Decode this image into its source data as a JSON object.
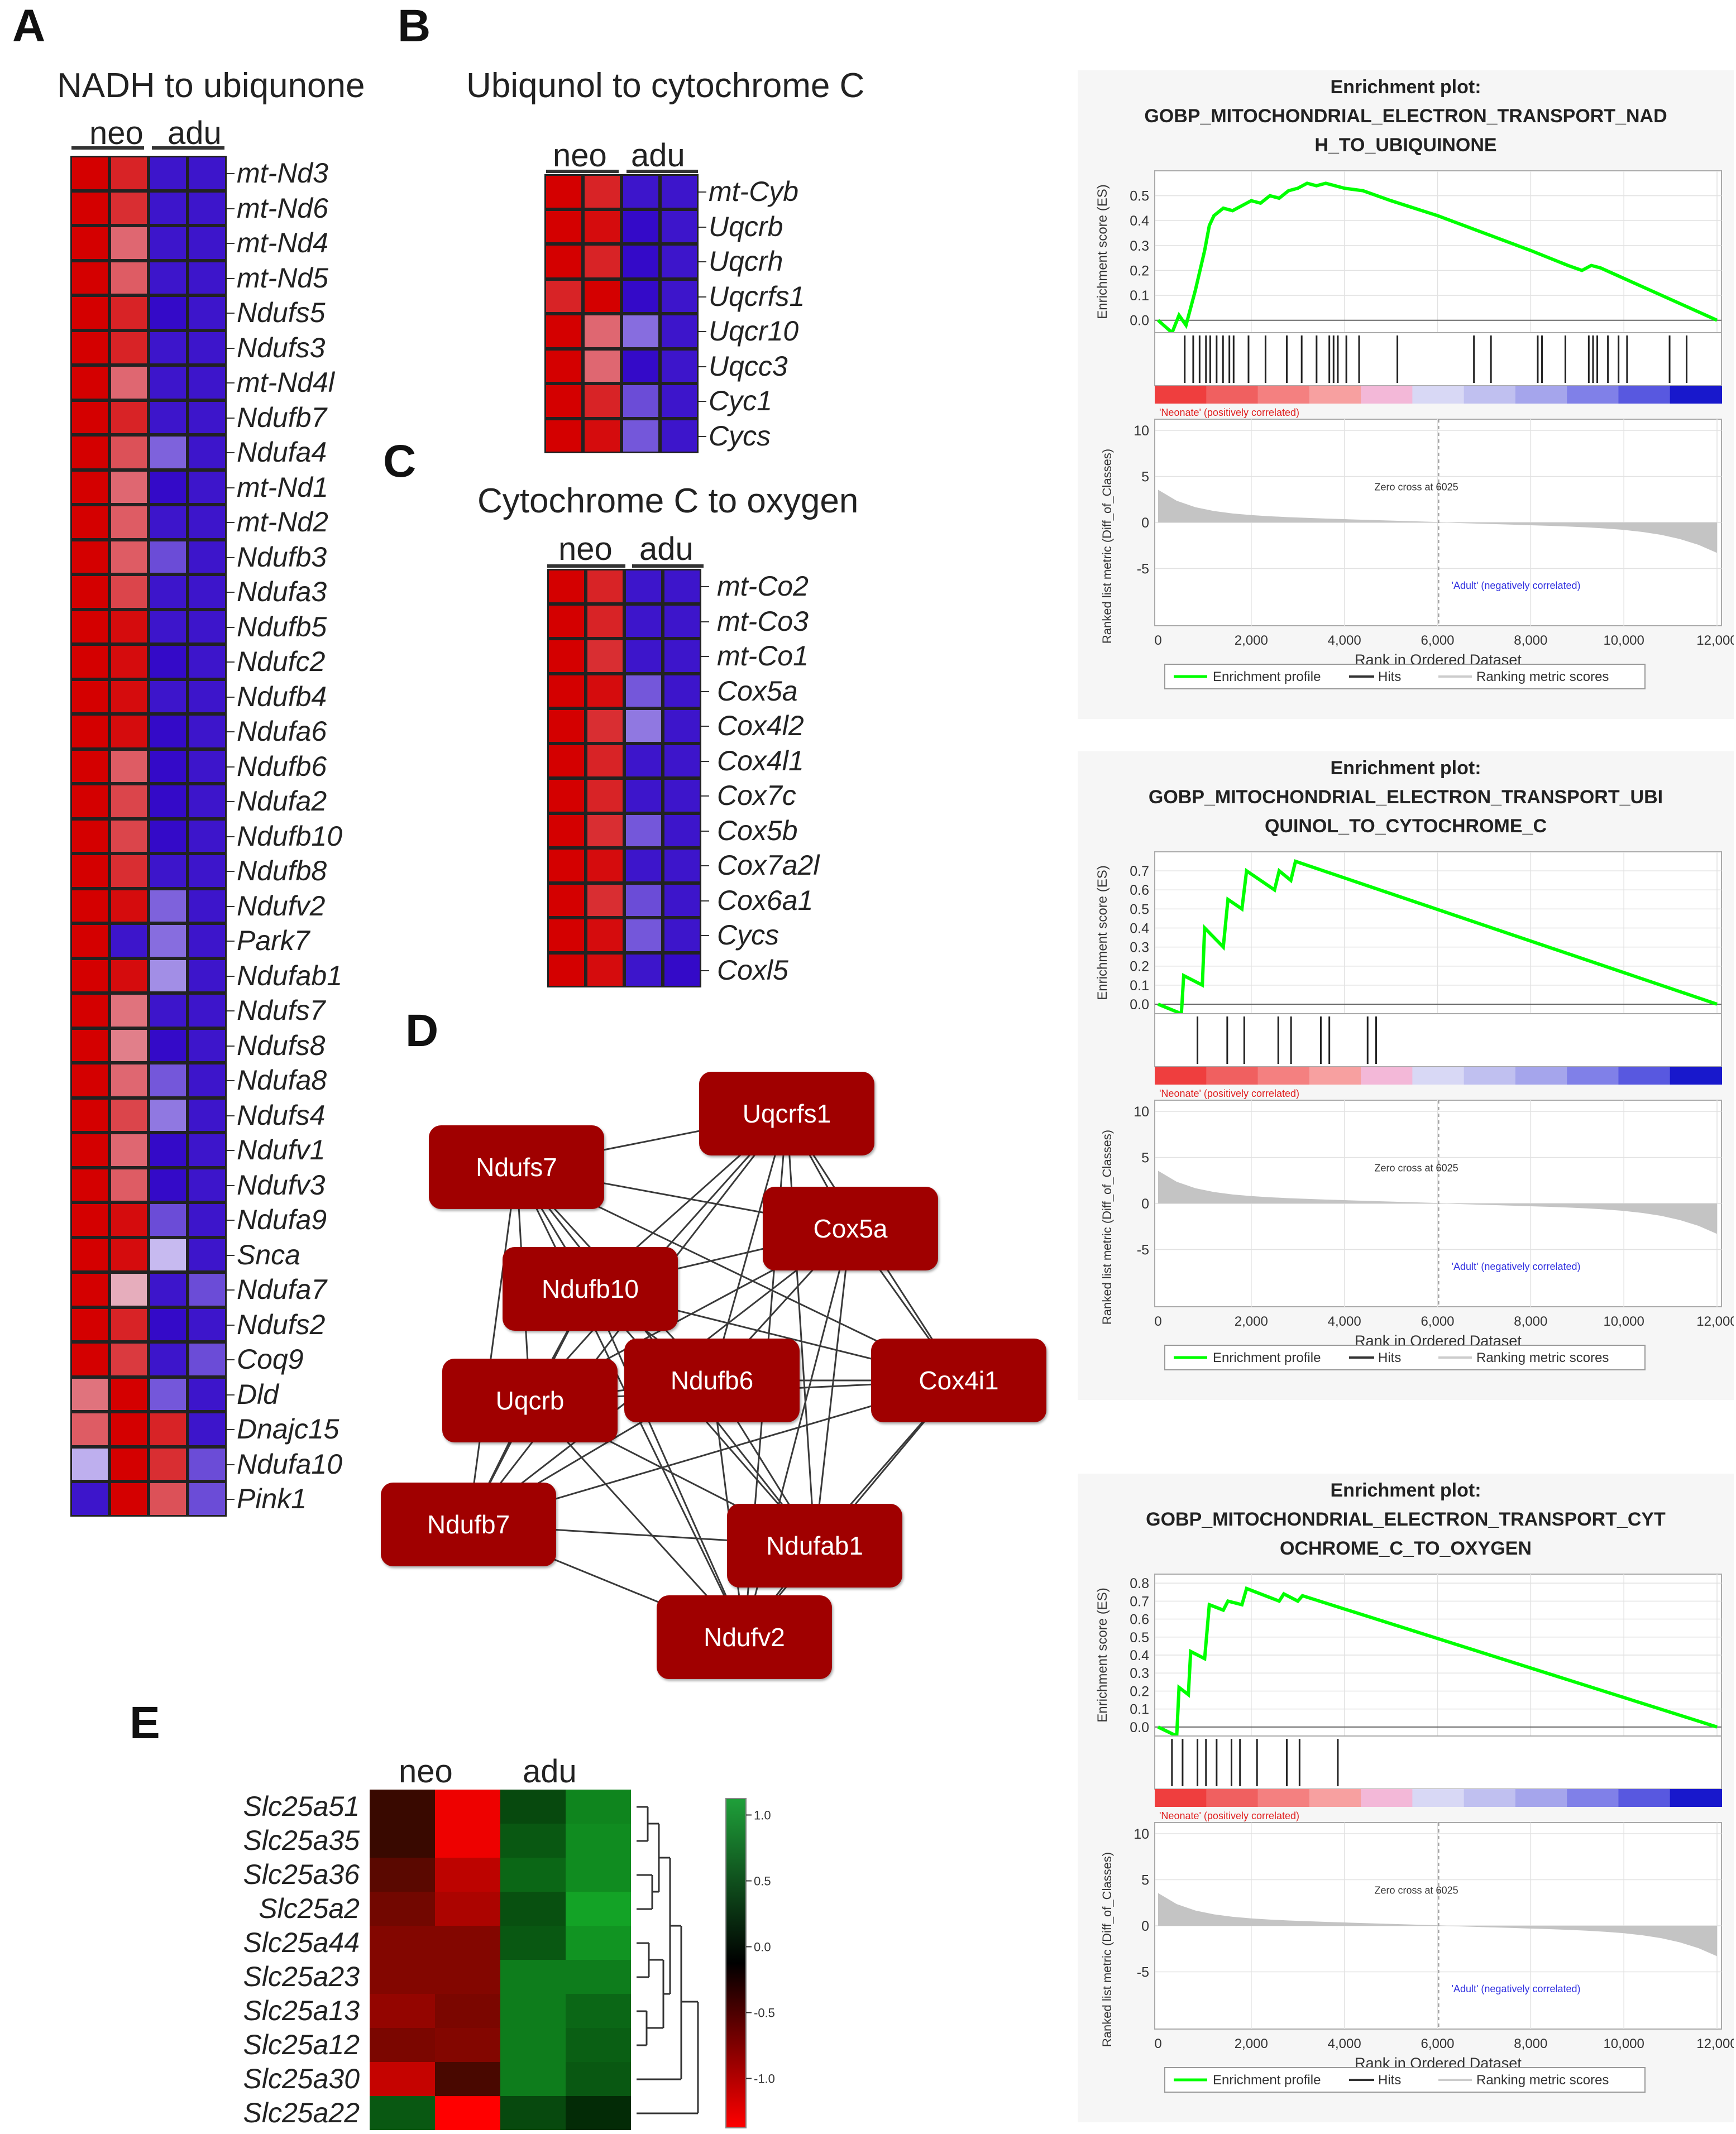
{
  "panels": {
    "A": "A",
    "B": "B",
    "C": "C",
    "D": "D",
    "E": "E"
  },
  "panel_a": {
    "title": "NADH to ubiqunone",
    "group_neo": "neo",
    "group_adu": "adu",
    "genes": [
      "mt-Nd3",
      "mt-Nd6",
      "mt-Nd4",
      "mt-Nd5",
      "Ndufs5",
      "Ndufs3",
      "mt-Nd4l",
      "Ndufb7",
      "Ndufa4",
      "mt-Nd1",
      "mt-Nd2",
      "Ndufb3",
      "Ndufa3",
      "Ndufb5",
      "Ndufc2",
      "Ndufb4",
      "Ndufa6",
      "Ndufb6",
      "Ndufa2",
      "Ndufb10",
      "Ndufb8",
      "Ndufv2",
      "Park7",
      "Ndufab1",
      "Ndufs7",
      "Ndufs8",
      "Ndufa8",
      "Ndufs4",
      "Ndufv1",
      "Ndufv3",
      "Ndufa9",
      "Snca",
      "Ndufa7",
      "Ndufs2",
      "Coq9",
      "Dld",
      "Dnajc15",
      "Ndufa10",
      "Pink1"
    ],
    "values": [
      [
        1,
        0.85,
        -0.95,
        -0.95
      ],
      [
        1,
        0.8,
        -0.95,
        -0.95
      ],
      [
        1,
        0.55,
        -0.95,
        -0.95
      ],
      [
        1,
        0.6,
        -0.95,
        -0.95
      ],
      [
        1,
        0.85,
        -1,
        -0.95
      ],
      [
        1,
        0.85,
        -0.95,
        -0.95
      ],
      [
        1,
        0.55,
        -0.95,
        -0.95
      ],
      [
        1,
        0.85,
        -0.95,
        -0.95
      ],
      [
        1,
        0.65,
        -0.6,
        -0.95
      ],
      [
        1,
        0.55,
        -1,
        -0.95
      ],
      [
        1,
        0.6,
        -0.95,
        -0.95
      ],
      [
        1,
        0.6,
        -0.7,
        -0.95
      ],
      [
        1,
        0.7,
        -0.95,
        -0.95
      ],
      [
        1,
        0.95,
        -0.95,
        -0.95
      ],
      [
        1,
        0.95,
        -1,
        -0.95
      ],
      [
        1,
        0.95,
        -0.95,
        -0.95
      ],
      [
        1,
        0.95,
        -1,
        -0.95
      ],
      [
        1,
        0.6,
        -1,
        -0.95
      ],
      [
        1,
        0.7,
        -1,
        -0.95
      ],
      [
        1,
        0.7,
        -1,
        -0.95
      ],
      [
        1,
        0.8,
        -0.95,
        -0.95
      ],
      [
        1,
        0.95,
        -0.6,
        -0.95
      ],
      [
        1,
        -0.95,
        -0.55,
        -0.95
      ],
      [
        1,
        0.95,
        -0.4,
        -0.95
      ],
      [
        1,
        0.5,
        -0.95,
        -0.95
      ],
      [
        1,
        0.45,
        -1,
        -0.95
      ],
      [
        1,
        0.55,
        -0.65,
        -0.95
      ],
      [
        1,
        0.7,
        -0.5,
        -0.95
      ],
      [
        1,
        0.55,
        -1,
        -0.95
      ],
      [
        1,
        0.6,
        -1,
        -0.95
      ],
      [
        1,
        0.95,
        -0.7,
        -0.95
      ],
      [
        1,
        0.95,
        -0.2,
        -0.95
      ],
      [
        1,
        0.25,
        -0.95,
        -0.7
      ],
      [
        1,
        0.85,
        -1,
        -0.95
      ],
      [
        1,
        0.75,
        -0.95,
        -0.7
      ],
      [
        0.5,
        1,
        -0.65,
        -0.95
      ],
      [
        0.6,
        1,
        0.85,
        -0.95
      ],
      [
        -0.25,
        1,
        0.8,
        -0.7
      ],
      [
        -0.95,
        1,
        0.65,
        -0.7
      ]
    ]
  },
  "panel_b": {
    "title": "Ubiqunol to cytochrome C",
    "group_neo": "neo",
    "group_adu": "adu",
    "genes": [
      "mt-Cyb",
      "Uqcrb",
      "Uqcrh",
      "Uqcrfs1",
      "Uqcr10",
      "Uqcc3",
      "Cyc1",
      "Cycs"
    ],
    "values": [
      [
        1,
        0.85,
        -0.95,
        -0.95
      ],
      [
        1,
        0.95,
        -1,
        -0.95
      ],
      [
        1,
        0.85,
        -1,
        -0.95
      ],
      [
        0.85,
        1,
        -1,
        -0.95
      ],
      [
        1,
        0.55,
        -0.55,
        -0.95
      ],
      [
        1,
        0.55,
        -1,
        -0.95
      ],
      [
        1,
        0.85,
        -0.7,
        -0.95
      ],
      [
        1,
        0.95,
        -0.65,
        -0.95
      ]
    ]
  },
  "panel_c": {
    "title": "Cytochrome C to oxygen",
    "group_neo": "neo",
    "group_adu": "adu",
    "genes": [
      "mt-Co2",
      "mt-Co3",
      "mt-Co1",
      "Cox5a",
      "Cox4l2",
      "Cox4l1",
      "Cox7c",
      "Cox5b",
      "Cox7a2l",
      "Cox6a1",
      "Cycs",
      "Coxl5"
    ],
    "values": [
      [
        1,
        0.85,
        -0.95,
        -0.95
      ],
      [
        1,
        0.85,
        -0.95,
        -0.95
      ],
      [
        1,
        0.8,
        -0.95,
        -0.95
      ],
      [
        1,
        0.95,
        -0.65,
        -0.95
      ],
      [
        1,
        0.8,
        -0.5,
        -0.95
      ],
      [
        1,
        0.85,
        -0.95,
        -0.95
      ],
      [
        1,
        0.85,
        -0.95,
        -0.95
      ],
      [
        1,
        0.8,
        -0.65,
        -0.95
      ],
      [
        1,
        0.95,
        -0.95,
        -0.95
      ],
      [
        1,
        0.8,
        -0.7,
        -0.95
      ],
      [
        1,
        0.95,
        -0.65,
        -0.95
      ],
      [
        1,
        0.95,
        -0.95,
        -1
      ]
    ]
  },
  "panel_d": {
    "nodes": [
      "Ndufs7",
      "Uqcrfs1",
      "Cox5a",
      "Ndufb10",
      "Uqcrb",
      "Ndufb6",
      "Cox4i1",
      "Ndufb7",
      "Ndufab1",
      "Ndufv2"
    ]
  },
  "panel_e": {
    "group_neo": "neo",
    "group_adu": "adu",
    "genes": [
      "Slc25a51",
      "Slc25a35",
      "Slc25a36",
      "Slc25a2",
      "Slc25a44",
      "Slc25a23",
      "Slc25a13",
      "Slc25a12",
      "Slc25a30",
      "Slc25a22"
    ],
    "values": [
      [
        -0.1,
        -1.2,
        0.35,
        0.75
      ],
      [
        -0.1,
        -1.2,
        0.45,
        0.8
      ],
      [
        -0.3,
        -0.9,
        0.55,
        0.8
      ],
      [
        -0.45,
        -0.8,
        0.4,
        0.95
      ],
      [
        -0.55,
        -0.55,
        0.45,
        0.85
      ],
      [
        -0.55,
        -0.55,
        0.7,
        0.7
      ],
      [
        -0.65,
        -0.5,
        0.7,
        0.55
      ],
      [
        -0.5,
        -0.55,
        0.7,
        0.5
      ],
      [
        -0.95,
        -0.2,
        0.7,
        0.45
      ],
      [
        0.45,
        -1.4,
        0.35,
        0.15
      ]
    ],
    "colorbar_ticks": [
      "1.0",
      "0.5",
      "0.0",
      "-0.5",
      "-1.0"
    ]
  },
  "gsea_common": {
    "heading": "Enrichment plot:",
    "ylabel_es": "Enrichment score (ES)",
    "ylabel_metric": "Ranked list metric (Diff_of_Classes)",
    "xlabel": "Rank in Ordered Dataset",
    "x_ticks": [
      "0",
      "2,000",
      "4,000",
      "6,000",
      "8,000",
      "10,000",
      "12,000"
    ],
    "metric_ticks": [
      "10",
      "5",
      "0",
      "-5"
    ],
    "neonate_label": "'Neonate' (positively correlated)",
    "adult_label": "'Adult' (negatively correlated)",
    "zero_cross": "Zero cross at 6025",
    "legend_profile": "Enrichment profile",
    "legend_hits": "Hits",
    "legend_metric": "Ranking metric scores",
    "line_color": "#00ff00"
  },
  "chart_data": [
    {
      "type": "line",
      "title": "GOBP_MITOCHONDRIAL_ELECTRON_TRANSPORT_NADH_TO_UBIQUINONE",
      "title_lines": [
        "GOBP_MITOCHONDRIAL_ELECTRON_TRANSPORT_NAD",
        "H_TO_UBIQUINONE"
      ],
      "xlabel": "Rank in Ordered Dataset",
      "ylabel": "Enrichment score (ES)",
      "xlim": [
        0,
        12000
      ],
      "ylim": [
        -0.05,
        0.6
      ],
      "y_ticks": [
        "0.5",
        "0.4",
        "0.3",
        "0.2",
        "0.1",
        "0.0"
      ],
      "y_tick_values": [
        0.5,
        0.4,
        0.3,
        0.2,
        0.1,
        0.0
      ],
      "x": [
        0,
        300,
        450,
        600,
        700,
        800,
        900,
        1000,
        1100,
        1200,
        1400,
        1600,
        1800,
        2000,
        2200,
        2400,
        2600,
        2800,
        3000,
        3200,
        3400,
        3600,
        3800,
        4000,
        4400,
        5000,
        6000,
        7000,
        8000,
        8800,
        9100,
        9300,
        9500,
        12000
      ],
      "y": [
        0,
        -0.05,
        0.02,
        -0.02,
        0.05,
        0.12,
        0.2,
        0.28,
        0.38,
        0.42,
        0.45,
        0.44,
        0.46,
        0.48,
        0.47,
        0.5,
        0.49,
        0.52,
        0.53,
        0.55,
        0.54,
        0.55,
        0.54,
        0.53,
        0.52,
        0.48,
        0.42,
        0.35,
        0.28,
        0.22,
        0.2,
        0.22,
        0.21,
        0.0
      ],
      "hits": [
        60,
        80,
        95,
        110,
        120,
        135,
        150,
        165,
        175,
        210,
        250,
        300,
        335,
        370,
        400,
        410,
        420,
        440,
        470,
        560,
        740,
        780,
        890,
        900,
        955,
        1010,
        1020,
        1030,
        1055,
        1080,
        1100,
        1200,
        1240
      ],
      "hits_xlim": [
        0,
        1280
      ]
    },
    {
      "type": "line",
      "title": "GOBP_MITOCHONDRIAL_ELECTRON_TRANSPORT_UBIQUINOL_TO_CYTOCHROME_C",
      "title_lines": [
        "GOBP_MITOCHONDRIAL_ELECTRON_TRANSPORT_UBI",
        "QUINOL_TO_CYTOCHROME_C"
      ],
      "xlabel": "Rank in Ordered Dataset",
      "ylabel": "Enrichment score (ES)",
      "xlim": [
        0,
        12000
      ],
      "ylim": [
        -0.05,
        0.8
      ],
      "y_ticks": [
        "0.7",
        "0.6",
        "0.5",
        "0.4",
        "0.3",
        "0.2",
        "0.1",
        "0.0"
      ],
      "y_tick_values": [
        0.7,
        0.6,
        0.5,
        0.4,
        0.3,
        0.2,
        0.1,
        0.0
      ],
      "x": [
        0,
        500,
        550,
        950,
        1000,
        1400,
        1500,
        1800,
        1900,
        2500,
        2600,
        2850,
        2950,
        12000
      ],
      "y": [
        0,
        -0.05,
        0.15,
        0.1,
        0.4,
        0.3,
        0.55,
        0.5,
        0.7,
        0.6,
        0.7,
        0.65,
        0.75,
        0.0
      ],
      "hits": [
        90,
        160,
        200,
        280,
        310,
        380,
        400,
        490,
        510
      ],
      "hits_xlim": [
        0,
        1280
      ]
    },
    {
      "type": "line",
      "title": "GOBP_MITOCHONDRIAL_ELECTRON_TRANSPORT_CYTOCHROME_C_TO_OXYGEN",
      "title_lines": [
        "GOBP_MITOCHONDRIAL_ELECTRON_TRANSPORT_CYT",
        "OCHROME_C_TO_OXYGEN"
      ],
      "xlabel": "Rank in Ordered Dataset",
      "ylabel": "Enrichment score (ES)",
      "xlim": [
        0,
        12000
      ],
      "ylim": [
        -0.05,
        0.85
      ],
      "y_ticks": [
        "0.8",
        "0.7",
        "0.6",
        "0.5",
        "0.4",
        "0.3",
        "0.2",
        "0.1",
        "0.0"
      ],
      "y_tick_values": [
        0.8,
        0.7,
        0.6,
        0.5,
        0.4,
        0.3,
        0.2,
        0.1,
        0.0
      ],
      "x": [
        0,
        400,
        450,
        650,
        700,
        1000,
        1100,
        1400,
        1500,
        1800,
        1900,
        2600,
        2700,
        3000,
        3100,
        12000
      ],
      "y": [
        0,
        -0.05,
        0.22,
        0.18,
        0.42,
        0.38,
        0.68,
        0.65,
        0.7,
        0.68,
        0.77,
        0.7,
        0.74,
        0.7,
        0.73,
        0.0
      ],
      "hits": [
        30,
        55,
        90,
        110,
        135,
        170,
        190,
        230,
        300,
        330,
        420
      ],
      "hits_xlim": [
        0,
        1280
      ]
    }
  ]
}
